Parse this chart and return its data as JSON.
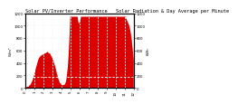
{
  "title": "Solar PV/Inverter Performance   Solar Radiation & Day Average per Minute",
  "ylabel_left": "W/m²",
  "ylabel_right": "kWh",
  "bg_color": "#ffffff",
  "plot_bg_color": "#ffffff",
  "fill_color": "#dd0000",
  "line_color": "#cc0000",
  "grid_color": "#aaaaaa",
  "title_fontsize": 3.8,
  "tick_fontsize": 2.8,
  "ylim": [
    0,
    1200
  ],
  "xlim": [
    0,
    300
  ],
  "dashed_line_y": 180,
  "num_points": 300
}
